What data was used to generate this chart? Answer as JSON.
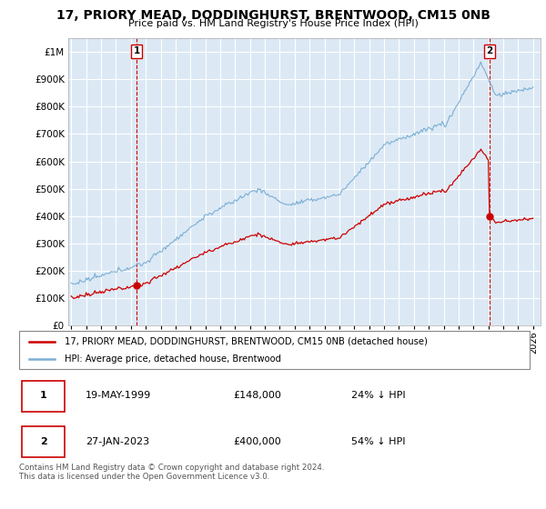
{
  "title": "17, PRIORY MEAD, DODDINGHURST, BRENTWOOD, CM15 0NB",
  "subtitle": "Price paid vs. HM Land Registry's House Price Index (HPI)",
  "hpi_color": "#7bafd4",
  "price_color": "#cc0000",
  "bg_color": "#dce9f5",
  "purchase1_x": 1999.38,
  "purchase1_y": 148000,
  "purchase2_x": 2023.07,
  "purchase2_y": 400000,
  "legend_line1": "17, PRIORY MEAD, DODDINGHURST, BRENTWOOD, CM15 0NB (detached house)",
  "legend_line2": "HPI: Average price, detached house, Brentwood",
  "table_row1": [
    "1",
    "19-MAY-1999",
    "£148,000",
    "24% ↓ HPI"
  ],
  "table_row2": [
    "2",
    "27-JAN-2023",
    "£400,000",
    "54% ↓ HPI"
  ],
  "footnote": "Contains HM Land Registry data © Crown copyright and database right 2024.\nThis data is licensed under the Open Government Licence v3.0.",
  "yticks": [
    0,
    100000,
    200000,
    300000,
    400000,
    500000,
    600000,
    700000,
    800000,
    900000,
    1000000
  ],
  "ytick_labels": [
    "£0",
    "£100K",
    "£200K",
    "£300K",
    "£400K",
    "£500K",
    "£600K",
    "£700K",
    "£800K",
    "£900K",
    "£1M"
  ],
  "xtick_years": [
    1995,
    1996,
    1997,
    1998,
    1999,
    2000,
    2001,
    2002,
    2003,
    2004,
    2005,
    2006,
    2007,
    2008,
    2009,
    2010,
    2011,
    2012,
    2013,
    2014,
    2015,
    2016,
    2017,
    2018,
    2019,
    2020,
    2021,
    2022,
    2023,
    2024,
    2025,
    2026
  ],
  "xlim_start": 1994.8,
  "xlim_end": 2026.5,
  "ylim_min": 0,
  "ylim_max": 1050000
}
